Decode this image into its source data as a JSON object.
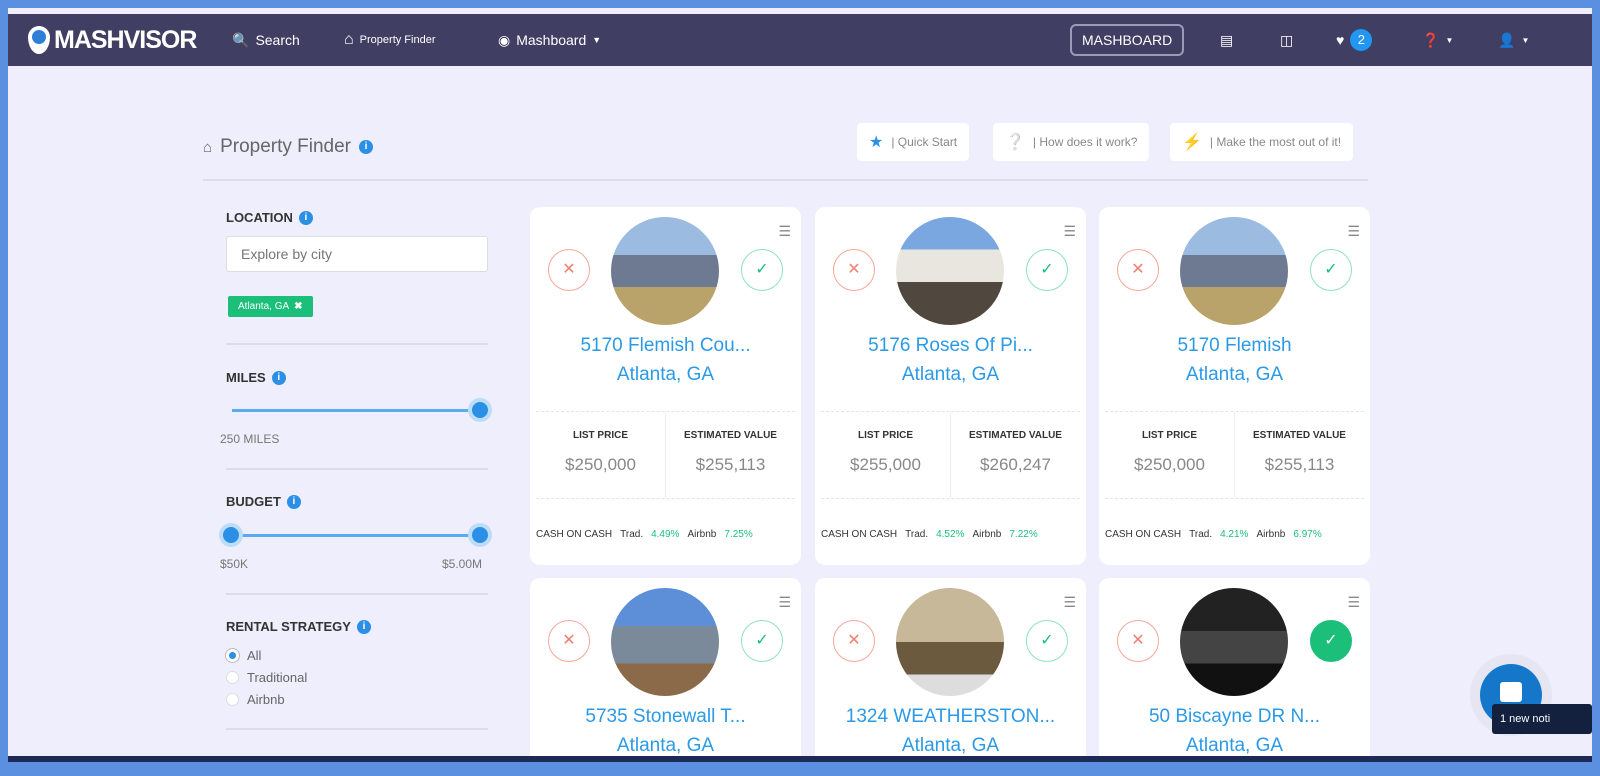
{
  "nav": {
    "logo": "MASHVISOR",
    "search": "Search",
    "property_finder": "Property Finder",
    "mashboard": "Mashboard",
    "mashboard_button": "MASHBOARD",
    "favorites_count": "2"
  },
  "header": {
    "title": "Property Finder",
    "quick_start": "| Quick Start",
    "how": "| How does it work?",
    "most": "| Make the most out of it!"
  },
  "filters": {
    "location_label": "LOCATION",
    "location_placeholder": "Explore by city",
    "location_tag": "Atlanta, GA",
    "miles_label": "MILES",
    "miles_value": "250 MILES",
    "miles_fraction": 1.0,
    "budget_label": "BUDGET",
    "budget_min": "$50K",
    "budget_max": "$5.00M",
    "strategy_label": "RENTAL STRATEGY",
    "strategies": [
      "All",
      "Traditional",
      "Airbnb"
    ],
    "strategy_selected": "All"
  },
  "labels": {
    "list_price": "LIST PRICE",
    "estimated_value": "ESTIMATED VALUE",
    "coc": "CASH ON CASH",
    "trad": "Trad.",
    "airbnb": "Airbnb"
  },
  "cards": [
    {
      "street": "5170 Flemish Cou...",
      "city": "Atlanta, GA",
      "list": "$250,000",
      "est": "$255,113",
      "trad": "4.49%",
      "airbnb": "7.25%",
      "liked": false
    },
    {
      "street": "5176 Roses Of Pi...",
      "city": "Atlanta, GA",
      "list": "$255,000",
      "est": "$260,247",
      "trad": "4.52%",
      "airbnb": "7.22%",
      "liked": false
    },
    {
      "street": "5170 Flemish",
      "city": "Atlanta, GA",
      "list": "$250,000",
      "est": "$255,113",
      "trad": "4.21%",
      "airbnb": "6.97%",
      "liked": false
    },
    {
      "street": "5735 Stonewall T...",
      "city": "Atlanta, GA",
      "liked": false
    },
    {
      "street": "1324 WEATHERSTON...",
      "city": "Atlanta, GA",
      "liked": false
    },
    {
      "street": "50 Biscayne DR N...",
      "city": "Atlanta, GA",
      "liked": true
    }
  ],
  "chat": {
    "toast": "1 new noti"
  }
}
